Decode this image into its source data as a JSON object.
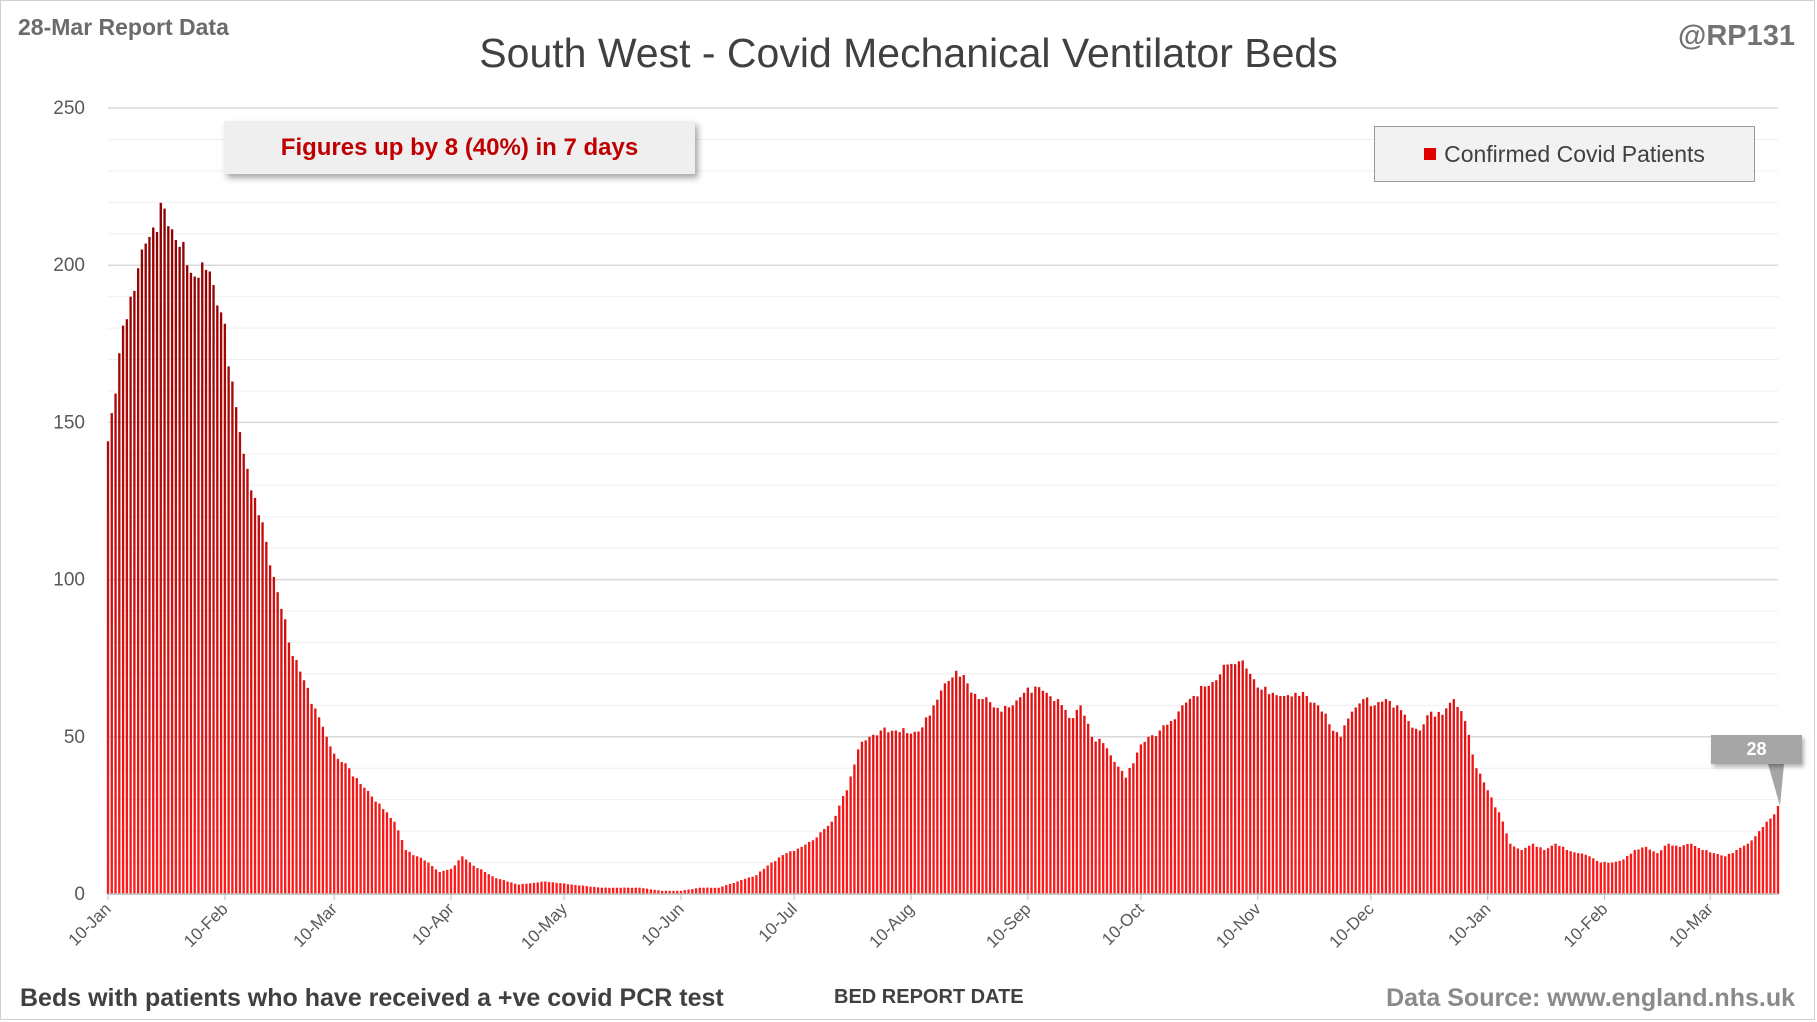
{
  "header": {
    "report_date": "28-Mar Report Data",
    "handle": "@RP131",
    "title": "South West - Covid Mechanical Ventilator Beds"
  },
  "footer": {
    "note": "Beds with patients who have received a +ve covid PCR test",
    "source": "Data Source: www.england.nhs.uk"
  },
  "annotation": {
    "text": "Figures up by 8 (40%) in 7 days"
  },
  "legend": {
    "label": "Confirmed Covid Patients",
    "color": "#e00000"
  },
  "callout": {
    "value": "28"
  },
  "colors": {
    "bar_top": "#8b0000",
    "bar_bottom": "#ff1a1a",
    "grid_major": "#d9d9d9",
    "grid_minor": "#efefef"
  },
  "chart_data": {
    "type": "bar",
    "title": "South West - Covid Mechanical Ventilator Beds",
    "xlabel": "BED REPORT DATE",
    "ylabel": "",
    "ylim": [
      0,
      250
    ],
    "yticks": [
      0,
      50,
      100,
      150,
      200,
      250
    ],
    "grid": true,
    "legend_position": "top-right",
    "x_start": "10-Jan",
    "x_end": "28-Mar",
    "x_tick_labels": [
      "10-Jan",
      "10-Feb",
      "10-Mar",
      "10-Apr",
      "10-May",
      "10-Jun",
      "10-Jul",
      "10-Aug",
      "10-Sep",
      "10-Oct",
      "10-Nov",
      "10-Dec",
      "10-Jan",
      "10-Feb",
      "10-Mar"
    ],
    "series": [
      {
        "name": "Confirmed Covid Patients",
        "anchor_values": [
          [
            "10-Jan",
            144
          ],
          [
            "13-Jan",
            172
          ],
          [
            "16-Jan",
            190
          ],
          [
            "19-Jan",
            205
          ],
          [
            "22-Jan",
            212
          ],
          [
            "25-Jan",
            218
          ],
          [
            "28-Jan",
            208
          ],
          [
            "31-Jan",
            200
          ],
          [
            "3-Feb",
            196
          ],
          [
            "6-Feb",
            198
          ],
          [
            "9-Feb",
            185
          ],
          [
            "12-Feb",
            163
          ],
          [
            "15-Feb",
            140
          ],
          [
            "18-Feb",
            126
          ],
          [
            "21-Feb",
            112
          ],
          [
            "24-Feb",
            96
          ],
          [
            "27-Feb",
            80
          ],
          [
            "2-Mar",
            68
          ],
          [
            "5-Mar",
            59
          ],
          [
            "8-Mar",
            50
          ],
          [
            "11-Mar",
            43
          ],
          [
            "14-Mar",
            40
          ],
          [
            "17-Mar",
            35
          ],
          [
            "20-Mar",
            31
          ],
          [
            "23-Mar",
            27
          ],
          [
            "26-Mar",
            23
          ],
          [
            "29-Mar",
            14
          ],
          [
            "1-Apr",
            12
          ],
          [
            "4-Apr",
            10
          ],
          [
            "7-Apr",
            7
          ],
          [
            "10-Apr",
            8
          ],
          [
            "13-Apr",
            12
          ],
          [
            "16-Apr",
            9
          ],
          [
            "19-Apr",
            7
          ],
          [
            "22-Apr",
            5
          ],
          [
            "28-Apr",
            3
          ],
          [
            "5-May",
            4
          ],
          [
            "12-May",
            3
          ],
          [
            "20-May",
            2
          ],
          [
            "30-May",
            2
          ],
          [
            "5-Jun",
            1
          ],
          [
            "10-Jun",
            1
          ],
          [
            "15-Jun",
            2
          ],
          [
            "20-Jun",
            2
          ],
          [
            "25-Jun",
            4
          ],
          [
            "30-Jun",
            6
          ],
          [
            "4-Jul",
            10
          ],
          [
            "8-Jul",
            13
          ],
          [
            "12-Jul",
            15
          ],
          [
            "16-Jul",
            18
          ],
          [
            "20-Jul",
            23
          ],
          [
            "24-Jul",
            33
          ],
          [
            "27-Jul",
            46
          ],
          [
            "30-Jul",
            50
          ],
          [
            "2-Aug",
            52
          ],
          [
            "6-Aug",
            52
          ],
          [
            "10-Aug",
            51
          ],
          [
            "13-Aug",
            53
          ],
          [
            "16-Aug",
            60
          ],
          [
            "19-Aug",
            67
          ],
          [
            "22-Aug",
            71
          ],
          [
            "25-Aug",
            67
          ],
          [
            "28-Aug",
            62
          ],
          [
            "31-Aug",
            61
          ],
          [
            "3-Sep",
            58
          ],
          [
            "6-Sep",
            60
          ],
          [
            "9-Sep",
            64
          ],
          [
            "12-Sep",
            66
          ],
          [
            "15-Sep",
            64
          ],
          [
            "18-Sep",
            62
          ],
          [
            "21-Sep",
            56
          ],
          [
            "24-Sep",
            60
          ],
          [
            "27-Sep",
            50
          ],
          [
            "30-Sep",
            48
          ],
          [
            "3-Oct",
            42
          ],
          [
            "6-Oct",
            37
          ],
          [
            "9-Oct",
            45
          ],
          [
            "12-Oct",
            50
          ],
          [
            "15-Oct",
            52
          ],
          [
            "18-Oct",
            55
          ],
          [
            "21-Oct",
            60
          ],
          [
            "24-Oct",
            63
          ],
          [
            "27-Oct",
            66
          ],
          [
            "30-Oct",
            68
          ],
          [
            "2-Nov",
            73
          ],
          [
            "5-Nov",
            74
          ],
          [
            "8-Nov",
            70
          ],
          [
            "11-Nov",
            65
          ],
          [
            "14-Nov",
            64
          ],
          [
            "17-Nov",
            63
          ],
          [
            "20-Nov",
            64
          ],
          [
            "23-Nov",
            63
          ],
          [
            "26-Nov",
            60
          ],
          [
            "29-Nov",
            54
          ],
          [
            "2-Dec",
            50
          ],
          [
            "5-Dec",
            58
          ],
          [
            "8-Dec",
            62
          ],
          [
            "11-Dec",
            60
          ],
          [
            "14-Dec",
            62
          ],
          [
            "17-Dec",
            60
          ],
          [
            "20-Dec",
            55
          ],
          [
            "23-Dec",
            52
          ],
          [
            "26-Dec",
            58
          ],
          [
            "29-Dec",
            57
          ],
          [
            "1-Jan",
            62
          ],
          [
            "4-Jan",
            55
          ],
          [
            "7-Jan",
            40
          ],
          [
            "10-Jan",
            33
          ],
          [
            "13-Jan",
            26
          ],
          [
            "16-Jan",
            16
          ],
          [
            "19-Jan",
            14
          ],
          [
            "22-Jan",
            16
          ],
          [
            "25-Jan",
            14
          ],
          [
            "28-Jan",
            16
          ],
          [
            "31-Jan",
            14
          ],
          [
            "3-Feb",
            13
          ],
          [
            "6-Feb",
            12
          ],
          [
            "9-Feb",
            10
          ],
          [
            "12-Feb",
            10
          ],
          [
            "15-Feb",
            11
          ],
          [
            "18-Feb",
            14
          ],
          [
            "21-Feb",
            15
          ],
          [
            "24-Feb",
            13
          ],
          [
            "27-Feb",
            16
          ],
          [
            "2-Mar",
            15
          ],
          [
            "5-Mar",
            16
          ],
          [
            "8-Mar",
            14
          ],
          [
            "11-Mar",
            13
          ],
          [
            "14-Mar",
            12
          ],
          [
            "17-Mar",
            14
          ],
          [
            "20-Mar",
            16
          ],
          [
            "23-Mar",
            20
          ],
          [
            "26-Mar",
            24
          ],
          [
            "28-Mar",
            28
          ]
        ]
      }
    ]
  }
}
